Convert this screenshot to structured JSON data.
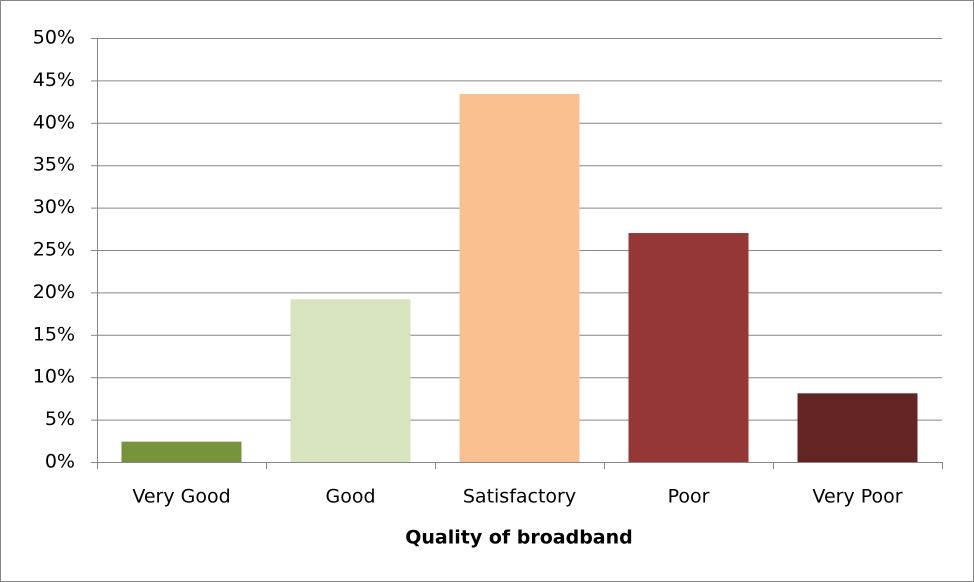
{
  "chart_data": {
    "type": "bar",
    "x_label": "Quality of broadband",
    "categories": [
      "Very Good",
      "Good",
      "Satisfactory",
      "Poor",
      "Very Poor"
    ],
    "values": [
      2.4,
      19.2,
      43.4,
      27.0,
      8.1
    ],
    "colors": [
      "#77933c",
      "#d7e4bd",
      "#fac090",
      "#953735",
      "#632523"
    ],
    "ylim": [
      0,
      50
    ],
    "yticks": [
      {
        "value": 0,
        "label": "0%"
      },
      {
        "value": 5,
        "label": "5%"
      },
      {
        "value": 10,
        "label": "10%"
      },
      {
        "value": 15,
        "label": "15%"
      },
      {
        "value": 20,
        "label": "20%"
      },
      {
        "value": 25,
        "label": "25%"
      },
      {
        "value": 30,
        "label": "30%"
      },
      {
        "value": 35,
        "label": "35%"
      },
      {
        "value": 40,
        "label": "40%"
      },
      {
        "value": 45,
        "label": "45%"
      },
      {
        "value": 50,
        "label": "50%"
      }
    ],
    "grid": true
  }
}
